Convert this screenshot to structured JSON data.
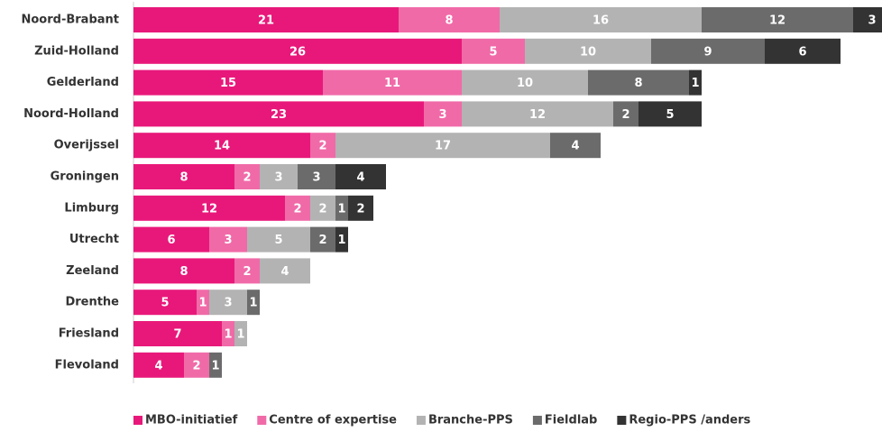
{
  "chart_data": {
    "type": "stacked-bar-horizontal",
    "categories": [
      "Noord-Brabant",
      "Zuid-Holland",
      "Gelderland",
      "Noord-Holland",
      "Overijssel",
      "Groningen",
      "Limburg",
      "Utrecht",
      "Zeeland",
      "Drenthe",
      "Friesland",
      "Flevoland"
    ],
    "series": [
      {
        "name": "MBO-initiatief",
        "color": "#e8187a",
        "values": [
          21,
          26,
          15,
          23,
          14,
          8,
          12,
          6,
          8,
          5,
          7,
          4
        ]
      },
      {
        "name": "Centre of expertise",
        "color": "#f06aa8",
        "values": [
          8,
          5,
          11,
          3,
          2,
          2,
          2,
          3,
          2,
          1,
          1,
          2
        ]
      },
      {
        "name": "Branche-PPS",
        "color": "#b3b3b3",
        "values": [
          16,
          10,
          10,
          12,
          17,
          3,
          2,
          5,
          4,
          3,
          1,
          null
        ]
      },
      {
        "name": "Fieldlab",
        "color": "#6b6b6b",
        "values": [
          12,
          9,
          8,
          2,
          4,
          3,
          1,
          2,
          null,
          1,
          null,
          1
        ]
      },
      {
        "name": "Regio-PPS /anders",
        "color": "#333333",
        "values": [
          3,
          6,
          1,
          5,
          null,
          4,
          2,
          1,
          null,
          null,
          null,
          null
        ]
      }
    ],
    "legend": "bottom"
  }
}
